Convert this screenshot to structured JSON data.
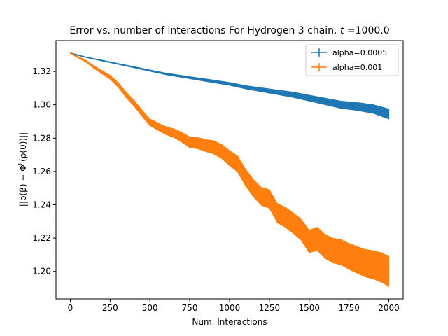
{
  "chart_data": {
    "type": "line",
    "title": "Error vs.  number of interactions For Hydrogen 3 chain.  t =1000.0",
    "title_parts": {
      "prefix": "Error vs.  number of interactions For Hydrogen 3 chain.  ",
      "var": "t",
      "suffix": " =1000.0"
    },
    "xlabel": "Num.  Interactions",
    "ylabel": "||ρ(β) − Φ^L(ρ(0))||",
    "ylabel_parts": {
      "a": "||ρ(β) − Φ",
      "sup": "L",
      "b": "(ρ(0))||"
    },
    "xlim": [
      -90,
      2090
    ],
    "ylim": [
      1.1835,
      1.3385
    ],
    "x_ticks": [
      0,
      250,
      500,
      750,
      1000,
      1250,
      1500,
      1750,
      2000
    ],
    "y_ticks": [
      1.2,
      1.22,
      1.24,
      1.26,
      1.28,
      1.3,
      1.32
    ],
    "y_tick_labels": [
      "1.20",
      "1.22",
      "1.24",
      "1.26",
      "1.28",
      "1.30",
      "1.32"
    ],
    "legend_position": "top-right",
    "series": [
      {
        "name": "alpha=0.0005",
        "color": "#1f77b4",
        "x": [
          0,
          100,
          200,
          300,
          400,
          500,
          600,
          700,
          800,
          900,
          1000,
          1100,
          1200,
          1300,
          1400,
          1500,
          1600,
          1700,
          1800,
          1900,
          2000
        ],
        "y": [
          1.331,
          1.3285,
          1.3265,
          1.3245,
          1.3225,
          1.3205,
          1.3185,
          1.317,
          1.3155,
          1.314,
          1.3125,
          1.3105,
          1.309,
          1.3075,
          1.306,
          1.304,
          1.302,
          1.3,
          1.299,
          1.2975,
          1.2945
        ],
        "err": [
          0.0002,
          0.0002,
          0.0003,
          0.0003,
          0.0004,
          0.0004,
          0.0005,
          0.0006,
          0.0007,
          0.0008,
          0.0009,
          0.001,
          0.0012,
          0.0014,
          0.0016,
          0.0018,
          0.002,
          0.0022,
          0.0024,
          0.0026,
          0.003
        ]
      },
      {
        "name": "alpha=0.001",
        "color": "#ff7f0e",
        "x": [
          0,
          100,
          150,
          200,
          250,
          300,
          350,
          400,
          450,
          500,
          550,
          600,
          650,
          700,
          750,
          800,
          850,
          900,
          950,
          1000,
          1050,
          1100,
          1150,
          1200,
          1250,
          1300,
          1350,
          1400,
          1450,
          1500,
          1550,
          1600,
          1650,
          1700,
          1750,
          1800,
          1850,
          1900,
          1950,
          2000
        ],
        "y": [
          1.331,
          1.326,
          1.3225,
          1.3195,
          1.3165,
          1.312,
          1.306,
          1.301,
          1.295,
          1.2895,
          1.287,
          1.2845,
          1.283,
          1.2805,
          1.2775,
          1.277,
          1.2755,
          1.2745,
          1.272,
          1.268,
          1.2645,
          1.2565,
          1.25,
          1.245,
          1.2435,
          1.235,
          1.2325,
          1.229,
          1.225,
          1.218,
          1.2195,
          1.215,
          1.2125,
          1.2115,
          1.209,
          1.207,
          1.205,
          1.204,
          1.2025,
          1.2
        ],
        "err": [
          0.0003,
          0.0006,
          0.0008,
          0.001,
          0.0012,
          0.0014,
          0.0016,
          0.0018,
          0.0019,
          0.002,
          0.0022,
          0.0024,
          0.0026,
          0.003,
          0.0032,
          0.0034,
          0.0036,
          0.004,
          0.0042,
          0.0045,
          0.0048,
          0.005,
          0.0052,
          0.0054,
          0.0056,
          0.0058,
          0.006,
          0.0062,
          0.0064,
          0.0068,
          0.007,
          0.0072,
          0.0074,
          0.0076,
          0.0078,
          0.008,
          0.0082,
          0.0085,
          0.0088,
          0.009
        ]
      }
    ]
  }
}
